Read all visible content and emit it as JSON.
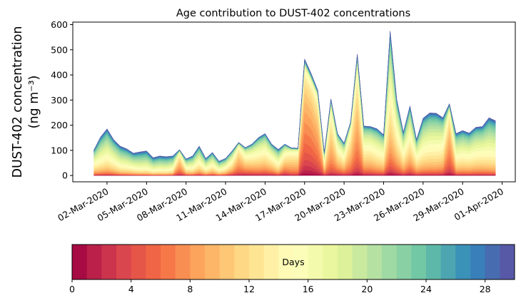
{
  "chart_data": {
    "type": "area",
    "stacked": true,
    "title": "Age contribution to DUST-402 concentrations",
    "ylabel_line1": "DUST-402 concentration",
    "ylabel_line2": "(ng m⁻³)",
    "xlabel": "",
    "ylim": [
      -25,
      610
    ],
    "yticks": [
      0,
      100,
      200,
      300,
      400,
      500,
      600
    ],
    "ytick_labels": [
      "0",
      "100",
      "200",
      "300",
      "400",
      "500",
      "600"
    ],
    "x_start": "2020-03-01T00:00",
    "x_step_hours": 12,
    "xtick_days_from_start": [
      1,
      4,
      7,
      10,
      13,
      16,
      19,
      22,
      25,
      28,
      31
    ],
    "xtick_labels": [
      "02-Mar-2020",
      "05-Mar-2020",
      "08-Mar-2020",
      "11-Mar-2020",
      "14-Mar-2020",
      "17-Mar-2020",
      "20-Mar-2020",
      "23-Mar-2020",
      "26-Mar-2020",
      "29-Mar-2020",
      "01-Apr-2020"
    ],
    "xlim_days_from_start": [
      -1.6,
      32.0
    ],
    "total_concentration": [
      101,
      153,
      186,
      143,
      117,
      106,
      89,
      94,
      98,
      71,
      78,
      75,
      78,
      103,
      66,
      78,
      117,
      68,
      92,
      57,
      68,
      98,
      132,
      111,
      125,
      151,
      167,
      125,
      104,
      125,
      110,
      109,
      464,
      406,
      340,
      92,
      305,
      167,
      129,
      214,
      483,
      197,
      195,
      186,
      162,
      575,
      303,
      172,
      277,
      143,
      228,
      249,
      248,
      230,
      286,
      167,
      179,
      169,
      192,
      195,
      230,
      218
    ],
    "mean_age_days": [
      16,
      17,
      17,
      17,
      18,
      18,
      18,
      19,
      19,
      19,
      19,
      19,
      18,
      10,
      16,
      17,
      16,
      17,
      16,
      17,
      16,
      14,
      10,
      12,
      13,
      14,
      14,
      14,
      16,
      12,
      11,
      11,
      8,
      8,
      9,
      14,
      11,
      13,
      14,
      11,
      10,
      14,
      14,
      15,
      15,
      14,
      14,
      15,
      14,
      15,
      16,
      16,
      16,
      15,
      9,
      16,
      16,
      16,
      16,
      16,
      17,
      17
    ],
    "age_bins_days": 30,
    "colormap": "Spectral",
    "colormap_stops": [
      "#9e0142",
      "#d53e4f",
      "#f46d43",
      "#fdae61",
      "#fee08b",
      "#ffffbf",
      "#e6f598",
      "#abdda4",
      "#66c2a5",
      "#3288bd",
      "#5e4fa2"
    ],
    "colorbar": {
      "label": "Days",
      "range": [
        0,
        30
      ],
      "ticks": [
        0,
        4,
        8,
        12,
        16,
        20,
        24,
        28
      ],
      "tick_labels": [
        "0",
        "4",
        "8",
        "12",
        "16",
        "20",
        "24",
        "28"
      ]
    }
  }
}
